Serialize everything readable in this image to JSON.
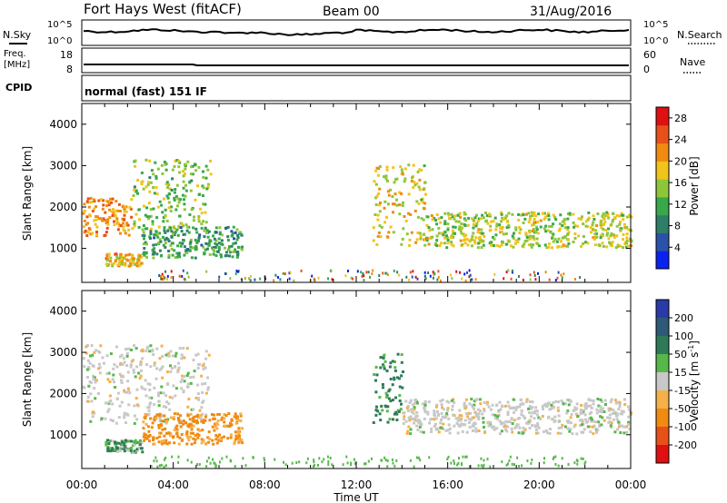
{
  "header": {
    "title": "Fort Hays West (fitACF)",
    "beam": "Beam 00",
    "date": "31/Aug/2016"
  },
  "top_panels": {
    "nsky_label": "N.Sky",
    "nsearch_label": "N.Search",
    "nsky_ticks": [
      "10^5",
      "10^0"
    ],
    "nsearch_ticks": [
      "10^5",
      "10^0"
    ],
    "freq_label": "Freq.",
    "freq_unit": "[MHz]",
    "freq_ticks": [
      "18",
      "8"
    ],
    "nave_label": "Nave",
    "nave_ticks": [
      "60",
      "0"
    ],
    "cpid_label": "CPID",
    "cpid_text": "normal (fast) 151 IF"
  },
  "chart_data": [
    {
      "type": "heatmap",
      "quantity": "Power",
      "ylabel": "Slant Range [km]",
      "xlabel": "Time UT",
      "x_ticks": [
        "00:00",
        "04:00",
        "08:00",
        "12:00",
        "16:00",
        "20:00",
        "00:00"
      ],
      "xlim_hours": [
        0,
        24
      ],
      "y_ticks": [
        1000,
        2000,
        3000,
        4000
      ],
      "ylim_km": [
        180,
        4500
      ],
      "colorbar": {
        "label": "Power [dB]",
        "ticks": [
          4,
          8,
          12,
          16,
          20,
          24,
          28
        ],
        "range": [
          0,
          30
        ],
        "colors": [
          "#0a22f0",
          "#2a52a8",
          "#2e7f6a",
          "#39a84a",
          "#8ec63a",
          "#f2c31a",
          "#f08a10",
          "#e8501a",
          "#e01010"
        ]
      },
      "echo_bands": [
        {
          "t": [
            0.0,
            2.2
          ],
          "range_km": [
            1300,
            2250
          ],
          "level": 22
        },
        {
          "t": [
            2.2,
            5.6
          ],
          "range_km": [
            1500,
            3200
          ],
          "level": 14
        },
        {
          "t": [
            1.0,
            2.6
          ],
          "range_km": [
            600,
            900
          ],
          "level": 20
        },
        {
          "t": [
            2.6,
            7.0
          ],
          "range_km": [
            800,
            1550
          ],
          "level": 10
        },
        {
          "t": [
            12.7,
            15.0
          ],
          "range_km": [
            1100,
            3050
          ],
          "level": 18
        },
        {
          "t": [
            15.0,
            24.0
          ],
          "range_km": [
            1050,
            1900
          ],
          "level": 16
        }
      ]
    },
    {
      "type": "heatmap",
      "quantity": "Velocity",
      "ylabel": "Slant Range [km]",
      "xlabel": "Time UT",
      "x_ticks": [
        "00:00",
        "04:00",
        "08:00",
        "12:00",
        "16:00",
        "20:00",
        "00:00"
      ],
      "xlim_hours": [
        0,
        24
      ],
      "y_ticks": [
        1000,
        2000,
        3000,
        4000
      ],
      "ylim_km": [
        180,
        4500
      ],
      "colorbar": {
        "label": "Velocity [m s^-1]",
        "ticks": [
          200,
          100,
          50,
          15,
          -15,
          -50,
          -100,
          -200
        ],
        "colors": [
          "#2a3aa8",
          "#2e5a78",
          "#2e7a58",
          "#56b84a",
          "#c8c8c8",
          "#f5b04a",
          "#f08a10",
          "#e8501a",
          "#e01010"
        ]
      },
      "echo_bands": [
        {
          "t": [
            0.0,
            5.6
          ],
          "range_km": [
            1300,
            3200
          ],
          "velocity": 0
        },
        {
          "t": [
            1.0,
            2.6
          ],
          "range_km": [
            600,
            900
          ],
          "velocity": 30
        },
        {
          "t": [
            2.6,
            7.0
          ],
          "range_km": [
            800,
            1550
          ],
          "velocity": -60
        },
        {
          "t": [
            12.7,
            14.0
          ],
          "range_km": [
            1300,
            3000
          ],
          "velocity": 40
        },
        {
          "t": [
            14.0,
            24.0
          ],
          "range_km": [
            1050,
            1900
          ],
          "velocity": 0
        }
      ]
    }
  ]
}
